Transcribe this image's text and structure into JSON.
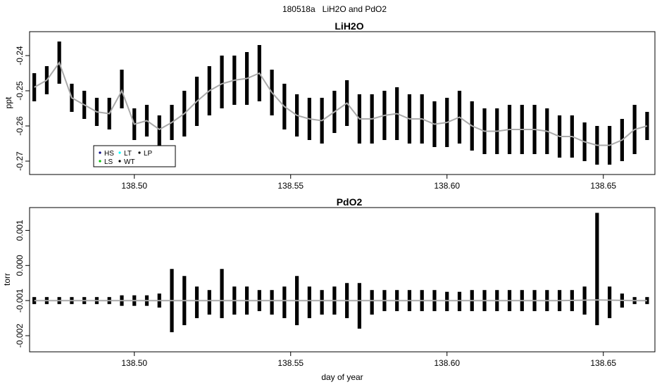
{
  "figure": {
    "suptitle": "180518a   LiH2O and PdO2"
  },
  "chart_data": [
    {
      "type": "line",
      "title": "LiH2O",
      "xlabel": "",
      "ylabel": "ppt",
      "xlim": [
        138.4665,
        138.6665
      ],
      "ylim": [
        -0.2738,
        -0.2332
      ],
      "xticks": [
        138.5,
        138.55,
        138.6,
        138.65
      ],
      "xtick_labels": [
        "138.50",
        "138.55",
        "138.60",
        "138.65"
      ],
      "yticks": [
        -0.27,
        -0.26,
        -0.25,
        -0.24
      ],
      "ytick_labels": [
        "-0.27",
        "-0.26",
        "-0.25",
        "-0.24"
      ],
      "legend": {
        "position": "bottom-left",
        "entries": [
          {
            "label": "HS",
            "color": "#000080"
          },
          {
            "label": "LT",
            "color": "#00ffff"
          },
          {
            "label": "LP",
            "color": "#000000"
          },
          {
            "label": "LS",
            "color": "#00c000"
          },
          {
            "label": "WT",
            "color": "#000000"
          }
        ]
      },
      "series": [
        {
          "style": "raw",
          "color": "#000000",
          "x": [
            138.468,
            138.472,
            138.476,
            138.48,
            138.484,
            138.488,
            138.492,
            138.496,
            138.5,
            138.504,
            138.508,
            138.512,
            138.516,
            138.52,
            138.524,
            138.528,
            138.532,
            138.536,
            138.54,
            138.544,
            138.548,
            138.552,
            138.556,
            138.56,
            138.564,
            138.568,
            138.572,
            138.576,
            138.58,
            138.584,
            138.588,
            138.592,
            138.596,
            138.6,
            138.604,
            138.608,
            138.612,
            138.616,
            138.62,
            138.624,
            138.628,
            138.632,
            138.636,
            138.64,
            138.644,
            138.648,
            138.652,
            138.656,
            138.66,
            138.664
          ],
          "ymin": [
            -0.253,
            -0.251,
            -0.248,
            -0.256,
            -0.258,
            -0.26,
            -0.261,
            -0.255,
            -0.264,
            -0.263,
            -0.266,
            -0.264,
            -0.263,
            -0.26,
            -0.257,
            -0.255,
            -0.254,
            -0.254,
            -0.253,
            -0.257,
            -0.261,
            -0.263,
            -0.264,
            -0.265,
            -0.262,
            -0.26,
            -0.265,
            -0.265,
            -0.264,
            -0.264,
            -0.265,
            -0.265,
            -0.266,
            -0.266,
            -0.265,
            -0.267,
            -0.268,
            -0.268,
            -0.268,
            -0.268,
            -0.268,
            -0.268,
            -0.269,
            -0.269,
            -0.27,
            -0.271,
            -0.271,
            -0.27,
            -0.268,
            -0.264
          ],
          "ymax": [
            -0.245,
            -0.243,
            -0.236,
            -0.248,
            -0.25,
            -0.252,
            -0.252,
            -0.244,
            -0.255,
            -0.254,
            -0.257,
            -0.254,
            -0.25,
            -0.246,
            -0.243,
            -0.24,
            -0.24,
            -0.239,
            -0.237,
            -0.244,
            -0.248,
            -0.251,
            -0.252,
            -0.252,
            -0.25,
            -0.247,
            -0.251,
            -0.251,
            -0.25,
            -0.249,
            -0.251,
            -0.251,
            -0.253,
            -0.252,
            -0.25,
            -0.253,
            -0.255,
            -0.255,
            -0.254,
            -0.254,
            -0.254,
            -0.255,
            -0.257,
            -0.257,
            -0.259,
            -0.26,
            -0.26,
            -0.258,
            -0.254,
            -0.256
          ]
        },
        {
          "style": "smooth",
          "color": "#aaaaaa",
          "x": [
            138.468,
            138.472,
            138.476,
            138.48,
            138.484,
            138.488,
            138.492,
            138.496,
            138.5,
            138.504,
            138.508,
            138.512,
            138.516,
            138.52,
            138.524,
            138.528,
            138.532,
            138.536,
            138.54,
            138.544,
            138.548,
            138.552,
            138.556,
            138.56,
            138.564,
            138.568,
            138.572,
            138.576,
            138.58,
            138.584,
            138.588,
            138.592,
            138.596,
            138.6,
            138.604,
            138.608,
            138.612,
            138.616,
            138.62,
            138.624,
            138.628,
            138.632,
            138.636,
            138.64,
            138.644,
            138.648,
            138.652,
            138.656,
            138.66,
            138.664
          ],
          "y": [
            -0.249,
            -0.247,
            -0.242,
            -0.252,
            -0.254,
            -0.256,
            -0.2565,
            -0.25,
            -0.2595,
            -0.2585,
            -0.261,
            -0.259,
            -0.2565,
            -0.253,
            -0.25,
            -0.248,
            -0.247,
            -0.2465,
            -0.245,
            -0.2505,
            -0.2545,
            -0.257,
            -0.258,
            -0.2585,
            -0.256,
            -0.2535,
            -0.258,
            -0.258,
            -0.257,
            -0.2565,
            -0.258,
            -0.258,
            -0.2595,
            -0.259,
            -0.2575,
            -0.26,
            -0.2615,
            -0.2615,
            -0.261,
            -0.261,
            -0.261,
            -0.2615,
            -0.263,
            -0.263,
            -0.2645,
            -0.2655,
            -0.2655,
            -0.264,
            -0.261,
            -0.26
          ]
        }
      ]
    },
    {
      "type": "line",
      "title": "PdO2",
      "xlabel": "day of year",
      "ylabel": "torr",
      "xlim": [
        138.4665,
        138.6665
      ],
      "ylim": [
        -0.00246,
        0.00165
      ],
      "xticks": [
        138.5,
        138.55,
        138.6,
        138.65
      ],
      "xtick_labels": [
        "138.50",
        "138.55",
        "138.60",
        "138.65"
      ],
      "yticks": [
        -0.002,
        -0.001,
        0.0,
        0.001
      ],
      "ytick_labels": [
        "-0.002",
        "-0.001",
        "0.000",
        "0.001"
      ],
      "series": [
        {
          "style": "raw",
          "color": "#000000",
          "x": [
            138.468,
            138.472,
            138.476,
            138.48,
            138.484,
            138.488,
            138.492,
            138.496,
            138.5,
            138.504,
            138.508,
            138.512,
            138.516,
            138.52,
            138.524,
            138.528,
            138.532,
            138.536,
            138.54,
            138.544,
            138.548,
            138.552,
            138.556,
            138.56,
            138.564,
            138.568,
            138.572,
            138.576,
            138.58,
            138.584,
            138.588,
            138.592,
            138.596,
            138.6,
            138.604,
            138.608,
            138.612,
            138.616,
            138.62,
            138.624,
            138.628,
            138.632,
            138.636,
            138.64,
            138.644,
            138.648,
            138.652,
            138.656,
            138.66,
            138.664
          ],
          "ymin": [
            -0.0011,
            -0.0011,
            -0.0011,
            -0.0011,
            -0.0011,
            -0.0011,
            -0.0011,
            -0.00115,
            -0.00115,
            -0.00115,
            -0.0012,
            -0.0019,
            -0.0017,
            -0.0015,
            -0.0014,
            -0.0015,
            -0.0014,
            -0.0014,
            -0.0013,
            -0.0014,
            -0.0015,
            -0.0017,
            -0.0015,
            -0.0014,
            -0.0014,
            -0.0015,
            -0.0018,
            -0.0014,
            -0.0013,
            -0.0013,
            -0.0013,
            -0.0013,
            -0.0013,
            -0.0013,
            -0.0013,
            -0.0013,
            -0.0013,
            -0.0013,
            -0.0013,
            -0.0013,
            -0.0013,
            -0.0013,
            -0.0013,
            -0.0013,
            -0.0014,
            -0.0017,
            -0.0015,
            -0.0012,
            -0.0011,
            -0.0011
          ],
          "ymax": [
            -0.0009,
            -0.0009,
            -0.0009,
            -0.0009,
            -0.0009,
            -0.0009,
            -0.0009,
            -0.00085,
            -0.00085,
            -0.00085,
            -0.0008,
            -0.0001,
            -0.0003,
            -0.0006,
            -0.0007,
            -0.0001,
            -0.0006,
            -0.0006,
            -0.0007,
            -0.0007,
            -0.0006,
            -0.0003,
            -0.0006,
            -0.0007,
            -0.0006,
            -0.0005,
            -0.0005,
            -0.0007,
            -0.0007,
            -0.0007,
            -0.0007,
            -0.0007,
            -0.0007,
            -0.00075,
            -0.00075,
            -0.0007,
            -0.0007,
            -0.0007,
            -0.0007,
            -0.0007,
            -0.0007,
            -0.0007,
            -0.0007,
            -0.0007,
            -0.0006,
            0.0015,
            -0.0006,
            -0.0008,
            -0.0009,
            -0.0009
          ]
        },
        {
          "style": "smooth",
          "color": "#aaaaaa",
          "x": [
            138.468,
            138.48,
            138.492,
            138.504,
            138.516,
            138.528,
            138.54,
            138.552,
            138.564,
            138.576,
            138.588,
            138.6,
            138.612,
            138.624,
            138.636,
            138.648,
            138.66,
            138.664
          ],
          "y": [
            -0.001,
            -0.001,
            -0.001,
            -0.001,
            -0.001,
            -0.001,
            -0.001,
            -0.001,
            -0.001,
            -0.001,
            -0.001,
            -0.001,
            -0.001,
            -0.001,
            -0.001,
            -0.00098,
            -0.001,
            -0.001
          ]
        }
      ]
    }
  ]
}
